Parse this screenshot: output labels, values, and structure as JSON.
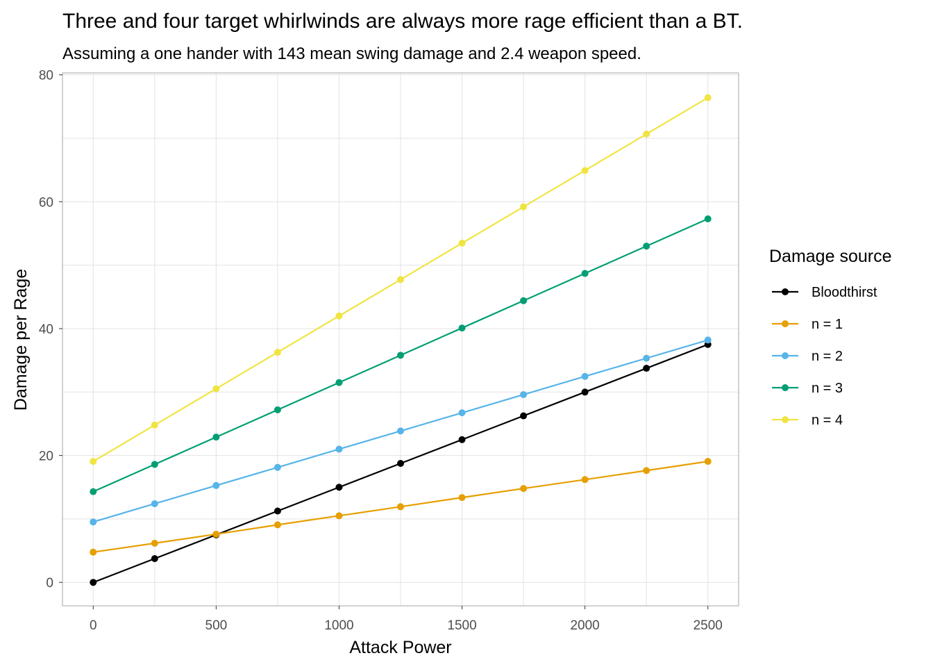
{
  "chart_data": {
    "type": "line",
    "title": "Three and four target whirlwinds are always more rage efficient than a BT.",
    "subtitle": "Assuming a one hander with 143 mean swing damage and 2.4 weapon speed.",
    "xlabel": "Attack Power",
    "ylabel": "Damage per Rage",
    "x": [
      0,
      250,
      500,
      750,
      1000,
      1250,
      1500,
      1750,
      2000,
      2250,
      2500
    ],
    "xlim": [
      -125,
      2625
    ],
    "ylim": [
      -3.7,
      80.3
    ],
    "xticks": [
      0,
      500,
      1000,
      1500,
      2000,
      2500
    ],
    "yticks": [
      0,
      20,
      40,
      60,
      80
    ],
    "grid": true,
    "legend_title": "Damage source",
    "legend_position": "right",
    "series": [
      {
        "name": "Bloodthirst",
        "color": "#000000",
        "values": [
          0,
          3.75,
          7.5,
          11.25,
          15.0,
          18.75,
          22.5,
          26.25,
          30.0,
          33.75,
          37.5
        ]
      },
      {
        "name": "n = 1",
        "color": "#E69F00",
        "values": [
          4.77,
          6.17,
          7.6,
          9.07,
          10.5,
          11.93,
          13.37,
          14.8,
          16.2,
          17.63,
          19.07
        ]
      },
      {
        "name": "n = 2",
        "color": "#56B4E9",
        "values": [
          9.53,
          12.4,
          15.27,
          18.13,
          21.0,
          23.87,
          26.73,
          29.6,
          32.47,
          35.33,
          38.2
        ]
      },
      {
        "name": "n = 3",
        "color": "#009E73",
        "values": [
          14.3,
          18.6,
          22.9,
          27.2,
          31.5,
          35.8,
          40.1,
          44.4,
          48.7,
          53.0,
          57.3
        ]
      },
      {
        "name": "n = 4",
        "color": "#F0E442",
        "values": [
          19.07,
          24.8,
          30.53,
          36.27,
          42.0,
          47.73,
          53.47,
          59.2,
          64.93,
          70.67,
          76.4
        ]
      }
    ]
  }
}
